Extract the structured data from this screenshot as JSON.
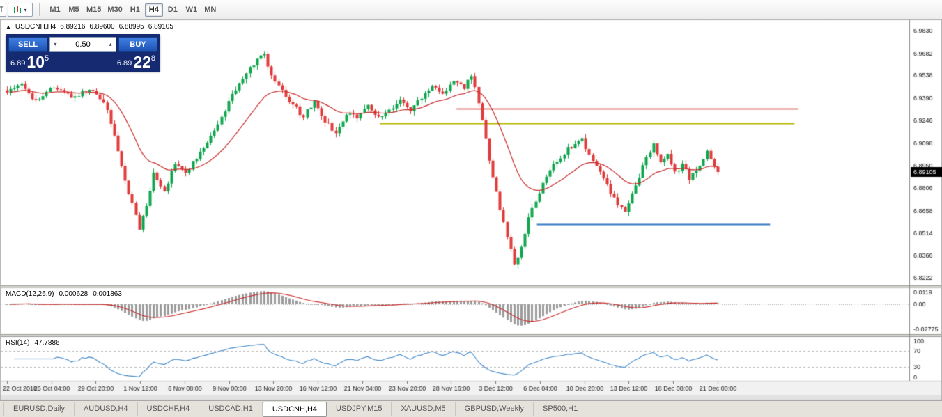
{
  "toolbar": {
    "left_button_label": "T",
    "timeframes": [
      {
        "label": "M1",
        "active": false
      },
      {
        "label": "M5",
        "active": false
      },
      {
        "label": "M15",
        "active": false
      },
      {
        "label": "M30",
        "active": false
      },
      {
        "label": "H1",
        "active": false
      },
      {
        "label": "H4",
        "active": true
      },
      {
        "label": "D1",
        "active": false
      },
      {
        "label": "W1",
        "active": false
      },
      {
        "label": "MN",
        "active": false
      }
    ]
  },
  "chart": {
    "symbol_label": "USDCNH,H4",
    "ohlc": {
      "open": "6.89216",
      "high": "6.89600",
      "low": "6.88995",
      "close": "6.89105"
    },
    "trade_panel": {
      "sell_label": "SELL",
      "buy_label": "BUY",
      "volume": "0.50",
      "bid": {
        "prefix": "6.89",
        "big": "10",
        "sup": "5"
      },
      "ask": {
        "prefix": "6.89",
        "big": "22",
        "sup": "8"
      }
    }
  },
  "chart_data": {
    "type": "candlestick",
    "title": "USDCNH,H4",
    "n_candles": 200,
    "current_bid": 6.89105,
    "bid_label": "6.89105",
    "price_path_anchors": [
      [
        0,
        6.942
      ],
      [
        4,
        6.949
      ],
      [
        8,
        6.937
      ],
      [
        13,
        6.946
      ],
      [
        18,
        6.94
      ],
      [
        24,
        6.945
      ],
      [
        28,
        6.932
      ],
      [
        31,
        6.905
      ],
      [
        34,
        6.878
      ],
      [
        37,
        6.855
      ],
      [
        39,
        6.868
      ],
      [
        41,
        6.89
      ],
      [
        44,
        6.8775
      ],
      [
        47,
        6.897
      ],
      [
        50,
        6.891
      ],
      [
        54,
        6.903
      ],
      [
        58,
        6.917
      ],
      [
        62,
        6.936
      ],
      [
        66,
        6.953
      ],
      [
        70,
        6.9645
      ],
      [
        72,
        6.967
      ],
      [
        74,
        6.953
      ],
      [
        77,
        6.943
      ],
      [
        80,
        6.935
      ],
      [
        83,
        6.927
      ],
      [
        86,
        6.937
      ],
      [
        89,
        6.924
      ],
      [
        92,
        6.917
      ],
      [
        95,
        6.929
      ],
      [
        98,
        6.927
      ],
      [
        101,
        6.934
      ],
      [
        104,
        6.926
      ],
      [
        107,
        6.931
      ],
      [
        110,
        6.938
      ],
      [
        113,
        6.931
      ],
      [
        116,
        6.94
      ],
      [
        119,
        6.948
      ],
      [
        122,
        6.942
      ],
      [
        125,
        6.951
      ],
      [
        128,
        6.946
      ],
      [
        130,
        6.954
      ],
      [
        132,
        6.936
      ],
      [
        134,
        6.912
      ],
      [
        136,
        6.888
      ],
      [
        138,
        6.868
      ],
      [
        140,
        6.85
      ],
      [
        142,
        6.83
      ],
      [
        144,
        6.842
      ],
      [
        146,
        6.86
      ],
      [
        148,
        6.872
      ],
      [
        150,
        6.885
      ],
      [
        152,
        6.8925
      ],
      [
        154,
        6.899
      ],
      [
        158,
        6.908
      ],
      [
        161,
        6.912
      ],
      [
        164,
        6.898
      ],
      [
        167,
        6.886
      ],
      [
        170,
        6.874
      ],
      [
        173,
        6.8645
      ],
      [
        176,
        6.882
      ],
      [
        179,
        6.901
      ],
      [
        181,
        6.908
      ],
      [
        183,
        6.897
      ],
      [
        185,
        6.902
      ],
      [
        187,
        6.89
      ],
      [
        189,
        6.896
      ],
      [
        191,
        6.887
      ],
      [
        193,
        6.891
      ],
      [
        196,
        6.906
      ],
      [
        198,
        6.893
      ],
      [
        199,
        6.891
      ]
    ],
    "synthesis": {
      "seed": 3,
      "noise_amp": 0.0016,
      "wick_amp": 0.0028
    },
    "y_axis": {
      "min": 6.8222,
      "max": 6.983,
      "labels": [
        "6.9830",
        "6.9682",
        "6.9538",
        "6.9390",
        "6.9246",
        "6.9098",
        "6.8950",
        "6.8806",
        "6.8658",
        "6.8514",
        "6.8366",
        "6.8222"
      ]
    },
    "x_axis": {
      "labels": [
        "22 Oct 2018",
        "25 Oct 04:00",
        "29 Oct 20:00",
        "1 Nov 12:00",
        "6 Nov 08:00",
        "9 Nov 00:00",
        "13 Nov 20:00",
        "16 Nov 12:00",
        "21 Nov 04:00",
        "23 Nov 20:00",
        "28 Nov 16:00",
        "3 Dec 12:00",
        "6 Dec 04:00",
        "10 Dec 20:00",
        "13 Dec 12:00",
        "18 Dec 08:00",
        "21 Dec 00:00"
      ]
    },
    "overlays": {
      "ma_period": 21,
      "hlines": [
        {
          "price": 6.9323,
          "color": "#cf2e2e",
          "from_frac": 0.499,
          "to_frac": 0.877,
          "width": 1.4
        },
        {
          "price": 6.9228,
          "color": "#b5b500",
          "from_frac": 0.414,
          "to_frac": 0.873,
          "width": 2
        },
        {
          "price": 6.8572,
          "color": "#3579c8",
          "from_frac": 0.588,
          "to_frac": 0.846,
          "width": 2
        }
      ]
    },
    "indicators": [
      {
        "type": "macd",
        "label": "MACD(12,26,9)",
        "values": [
          "0.000628",
          "0.001863"
        ],
        "params": {
          "fast": 12,
          "slow": 26,
          "signal": 9
        },
        "axis_labels": [
          "0.0119",
          "0.00",
          "-0.02775"
        ]
      },
      {
        "type": "rsi",
        "label": "RSI(14)",
        "values": [
          "47.7886"
        ],
        "params": {
          "period": 14
        },
        "levels": [
          70,
          30
        ],
        "axis_labels": [
          "100",
          "70",
          "30",
          "0"
        ]
      }
    ]
  },
  "tabs": [
    {
      "label": "EURUSD,Daily",
      "active": false
    },
    {
      "label": "AUDUSD,H4",
      "active": false
    },
    {
      "label": "USDCHF,H4",
      "active": false
    },
    {
      "label": "USDCAD,H1",
      "active": false
    },
    {
      "label": "USDCNH,H4",
      "active": true
    },
    {
      "label": "USDJPY,M15",
      "active": false
    },
    {
      "label": "XAUUSD,M5",
      "active": false
    },
    {
      "label": "GBPUSD,Weekly",
      "active": false
    },
    {
      "label": "SP500,H1",
      "active": false
    }
  ],
  "colors": {
    "candle_up": "#0fa64e",
    "candle_down": "#e03a3a",
    "ma_line": "#c92a2a",
    "macd_hist": "#9c9c9c",
    "macd_signal": "#c92a2a",
    "rsi_line": "#3f87c9",
    "bid_tag_bg": "#000000",
    "bid_tag_text": "#ffffff"
  }
}
